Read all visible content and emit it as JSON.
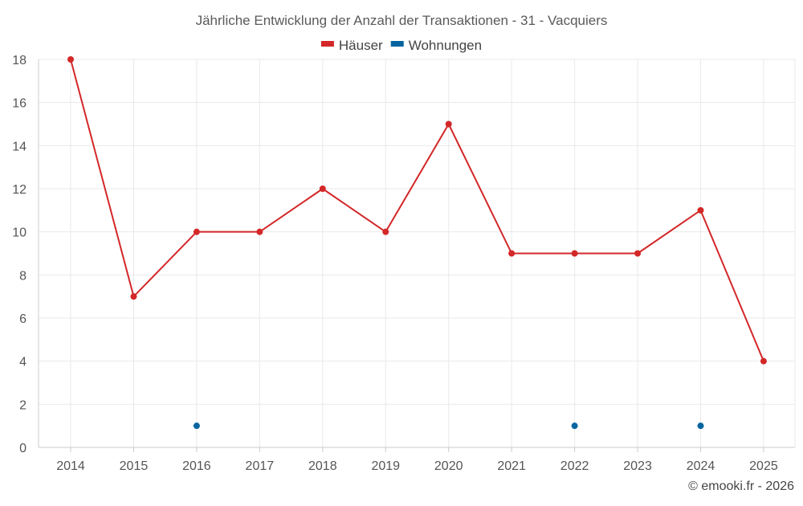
{
  "chart_data": {
    "type": "line",
    "title": "Jährliche Entwicklung der Anzahl der Transaktionen - 31 - Vacquiers",
    "xlabel": "",
    "ylabel": "",
    "categories": [
      "2014",
      "2015",
      "2016",
      "2017",
      "2018",
      "2019",
      "2020",
      "2021",
      "2022",
      "2023",
      "2024",
      "2025"
    ],
    "ylim": [
      0,
      18
    ],
    "yticks": [
      "0",
      "2",
      "4",
      "6",
      "8",
      "10",
      "12",
      "14",
      "16",
      "18"
    ],
    "grid": true,
    "legend_position": "top-center",
    "series": [
      {
        "name": "Häuser",
        "color": "#d32728",
        "mode": "lines+markers",
        "values": [
          18,
          7,
          10,
          10,
          12,
          10,
          15,
          9,
          9,
          9,
          11,
          4
        ]
      },
      {
        "name": "Wohnungen",
        "color": "#0565a0",
        "mode": "markers",
        "values": [
          null,
          null,
          1,
          null,
          null,
          null,
          null,
          null,
          1,
          null,
          1,
          null
        ]
      }
    ]
  },
  "credit": "© emooki.fr - 2026"
}
